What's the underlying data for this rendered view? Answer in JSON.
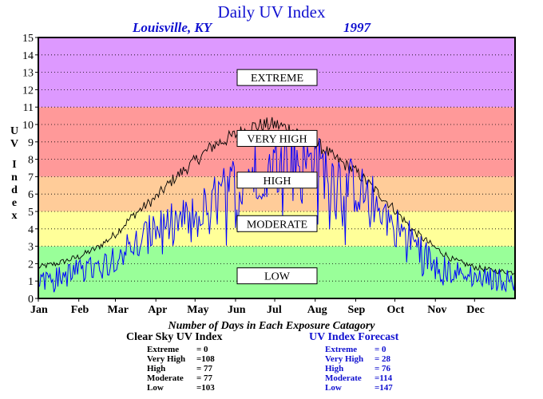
{
  "title": "Daily UV Index",
  "subtitle": "Louisville, KY",
  "year": "1997",
  "chart_data": {
    "type": "line",
    "y_axis_label": "UV Index",
    "ylim": [
      0,
      15
    ],
    "y_ticks": [
      0,
      1,
      2,
      3,
      4,
      5,
      6,
      7,
      8,
      9,
      10,
      11,
      12,
      13,
      14,
      15
    ],
    "x_unit": "day of year",
    "xlim": [
      1,
      366
    ],
    "months": [
      {
        "label": "Jan",
        "start_day": 1
      },
      {
        "label": "Feb",
        "start_day": 32
      },
      {
        "label": "Mar",
        "start_day": 60
      },
      {
        "label": "Apr",
        "start_day": 91
      },
      {
        "label": "May",
        "start_day": 121
      },
      {
        "label": "Jun",
        "start_day": 152
      },
      {
        "label": "Jul",
        "start_day": 182
      },
      {
        "label": "Aug",
        "start_day": 213
      },
      {
        "label": "Sep",
        "start_day": 244
      },
      {
        "label": "Oct",
        "start_day": 274
      },
      {
        "label": "Nov",
        "start_day": 305
      },
      {
        "label": "Dec",
        "start_day": 335
      }
    ],
    "bands": [
      {
        "label": "LOW",
        "min": 0,
        "max": 3,
        "color": "#99ff99"
      },
      {
        "label": "MODERATE",
        "min": 3,
        "max": 5,
        "color": "#ffff99"
      },
      {
        "label": "HIGH",
        "min": 5,
        "max": 7,
        "color": "#ffcc99"
      },
      {
        "label": "VERY HIGH",
        "min": 7,
        "max": 11,
        "color": "#ff9999"
      },
      {
        "label": "EXTREME",
        "min": 11,
        "max": 15,
        "color": "#dd99ff"
      }
    ],
    "band_label_values": {
      "EXTREME": 12.7,
      "VERY HIGH": 9.2,
      "HIGH": 6.8,
      "MODERATE": 4.3,
      "LOW": 1.3
    },
    "series": [
      {
        "name": "Clear Sky UV Index",
        "color": "#000000",
        "sample_days": [
          1,
          15,
          32,
          46,
          60,
          74,
          91,
          105,
          121,
          135,
          152,
          166,
          182,
          196,
          213,
          227,
          244,
          258,
          274,
          288,
          305,
          319,
          335,
          349,
          365
        ],
        "values": [
          1.8,
          2.0,
          2.4,
          2.9,
          3.7,
          4.8,
          5.8,
          6.9,
          7.9,
          8.8,
          9.4,
          9.9,
          10.0,
          9.7,
          9.0,
          8.1,
          7.3,
          6.3,
          5.1,
          3.9,
          2.9,
          2.2,
          1.8,
          1.6,
          1.5
        ]
      },
      {
        "name": "UV Index Forecast",
        "color": "#0000ff",
        "sample_days": [
          1,
          15,
          32,
          46,
          60,
          74,
          91,
          105,
          121,
          135,
          152,
          166,
          182,
          196,
          213,
          227,
          244,
          258,
          274,
          288,
          305,
          319,
          335,
          349,
          365
        ],
        "values": [
          1.2,
          1.1,
          1.5,
          1.6,
          2.4,
          3.0,
          3.8,
          4.2,
          4.6,
          5.4,
          6.6,
          7.1,
          7.6,
          7.9,
          7.5,
          7.0,
          6.2,
          5.5,
          4.1,
          3.2,
          1.8,
          1.4,
          1.2,
          1.0,
          1.0
        ]
      }
    ]
  },
  "days_heading": "Number of Days in Each Exposure Catagory",
  "clear_sky": {
    "title": "Clear Sky UV Index",
    "rows": [
      {
        "label": "Extreme",
        "value": "=    0"
      },
      {
        "label": "Very High",
        "value": "=108"
      },
      {
        "label": "High",
        "value": "=  77"
      },
      {
        "label": "Moderate",
        "value": "=  77"
      },
      {
        "label": "Low",
        "value": "=103"
      }
    ]
  },
  "forecast": {
    "title": "UV Index Forecast",
    "rows": [
      {
        "label": "Extreme",
        "value": "=    0"
      },
      {
        "label": "Very High",
        "value": "=  28"
      },
      {
        "label": "High",
        "value": "=  76"
      },
      {
        "label": "Moderate",
        "value": "=114"
      },
      {
        "label": "Low",
        "value": "=147"
      }
    ]
  }
}
